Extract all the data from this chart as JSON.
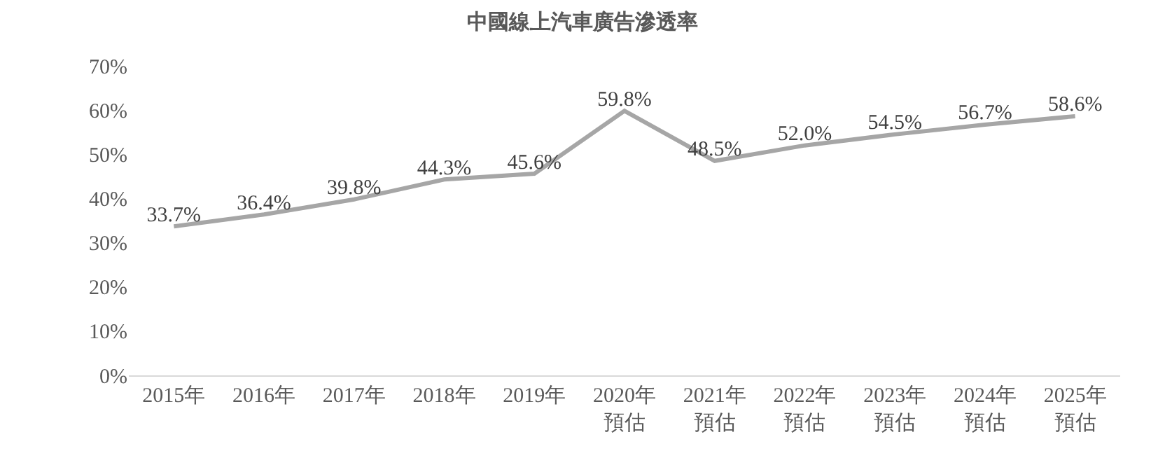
{
  "chart_data": {
    "type": "line",
    "title": "中國線上汽車廣告滲透率",
    "categories": [
      "2015年",
      "2016年",
      "2017年",
      "2018年",
      "2019年",
      "2020年預估",
      "2021年預估",
      "2022年預估",
      "2023年預估",
      "2024年預估",
      "2025年預估"
    ],
    "series": [
      {
        "color": "#a6a6a6",
        "values": [
          33.7,
          36.4,
          39.8,
          44.3,
          45.6,
          59.8,
          48.5,
          52.0,
          54.5,
          56.7,
          58.6
        ],
        "value_labels": [
          "33.7%",
          "36.4%",
          "39.8%",
          "44.3%",
          "45.6%",
          "59.8%",
          "48.5%",
          "52.0%",
          "54.5%",
          "56.7%",
          "58.6%"
        ]
      }
    ],
    "ylim": [
      0,
      70
    ],
    "yticks": [
      {
        "value": 0,
        "label": "0%"
      },
      {
        "value": 10,
        "label": "10%"
      },
      {
        "value": 20,
        "label": "20%"
      },
      {
        "value": 30,
        "label": "30%"
      },
      {
        "value": 40,
        "label": "40%"
      },
      {
        "value": 50,
        "label": "50%"
      },
      {
        "value": 60,
        "label": "60%"
      },
      {
        "value": 70,
        "label": "70%"
      }
    ],
    "grid": false,
    "legend": false,
    "marker": "none",
    "line_style": "solid"
  }
}
